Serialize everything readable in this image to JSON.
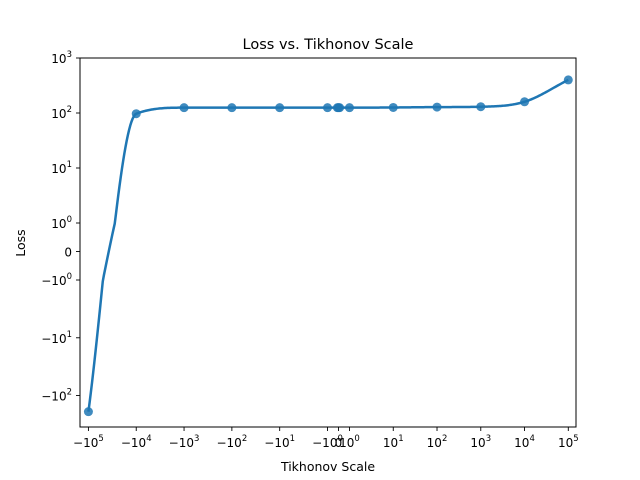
{
  "chart_data": {
    "type": "line",
    "title": "Loss vs. Tikhonov Scale",
    "xlabel": "Tikhonov Scale",
    "ylabel": "Loss",
    "xscale": "symlog",
    "yscale": "symlog",
    "xlim": [
      -150000,
      150000
    ],
    "ylim": [
      -350,
      1000
    ],
    "grid": false,
    "color": "#1f77b4",
    "x_ticks": [
      {
        "value": -100000,
        "base": "−10",
        "exp": "5"
      },
      {
        "value": -10000,
        "base": "−10",
        "exp": "4"
      },
      {
        "value": -1000,
        "base": "−10",
        "exp": "3"
      },
      {
        "value": -100,
        "base": "−10",
        "exp": "2"
      },
      {
        "value": -10,
        "base": "−10",
        "exp": "1"
      },
      {
        "value": -1,
        "base": "−10",
        "exp": "0"
      },
      {
        "value": 0,
        "base": "0",
        "exp": ""
      },
      {
        "value": 1,
        "base": "10",
        "exp": "0"
      },
      {
        "value": 10,
        "base": "10",
        "exp": "1"
      },
      {
        "value": 100,
        "base": "10",
        "exp": "2"
      },
      {
        "value": 1000,
        "base": "10",
        "exp": "3"
      },
      {
        "value": 10000,
        "base": "10",
        "exp": "4"
      },
      {
        "value": 100000,
        "base": "10",
        "exp": "5"
      }
    ],
    "y_ticks": [
      {
        "value": 1000,
        "base": "10",
        "exp": "3"
      },
      {
        "value": 100,
        "base": "10",
        "exp": "2"
      },
      {
        "value": 10,
        "base": "10",
        "exp": "1"
      },
      {
        "value": 1,
        "base": "10",
        "exp": "0"
      },
      {
        "value": 0,
        "base": "0",
        "exp": ""
      },
      {
        "value": -1,
        "base": "−10",
        "exp": "0"
      },
      {
        "value": -10,
        "base": "−10",
        "exp": "1"
      },
      {
        "value": -100,
        "base": "−10",
        "exp": "2"
      }
    ],
    "points": [
      {
        "x": -100000,
        "y": -190
      },
      {
        "x": -10000,
        "y": 97
      },
      {
        "x": -1000,
        "y": 125
      },
      {
        "x": -100,
        "y": 125
      },
      {
        "x": -10,
        "y": 125
      },
      {
        "x": -1,
        "y": 125
      },
      {
        "x": -0.1,
        "y": 125
      },
      {
        "x": 0,
        "y": 125
      },
      {
        "x": 0.1,
        "y": 125
      },
      {
        "x": 1,
        "y": 125
      },
      {
        "x": 10,
        "y": 126
      },
      {
        "x": 100,
        "y": 128
      },
      {
        "x": 1000,
        "y": 130
      },
      {
        "x": 10000,
        "y": 160
      },
      {
        "x": 100000,
        "y": 400
      }
    ]
  }
}
